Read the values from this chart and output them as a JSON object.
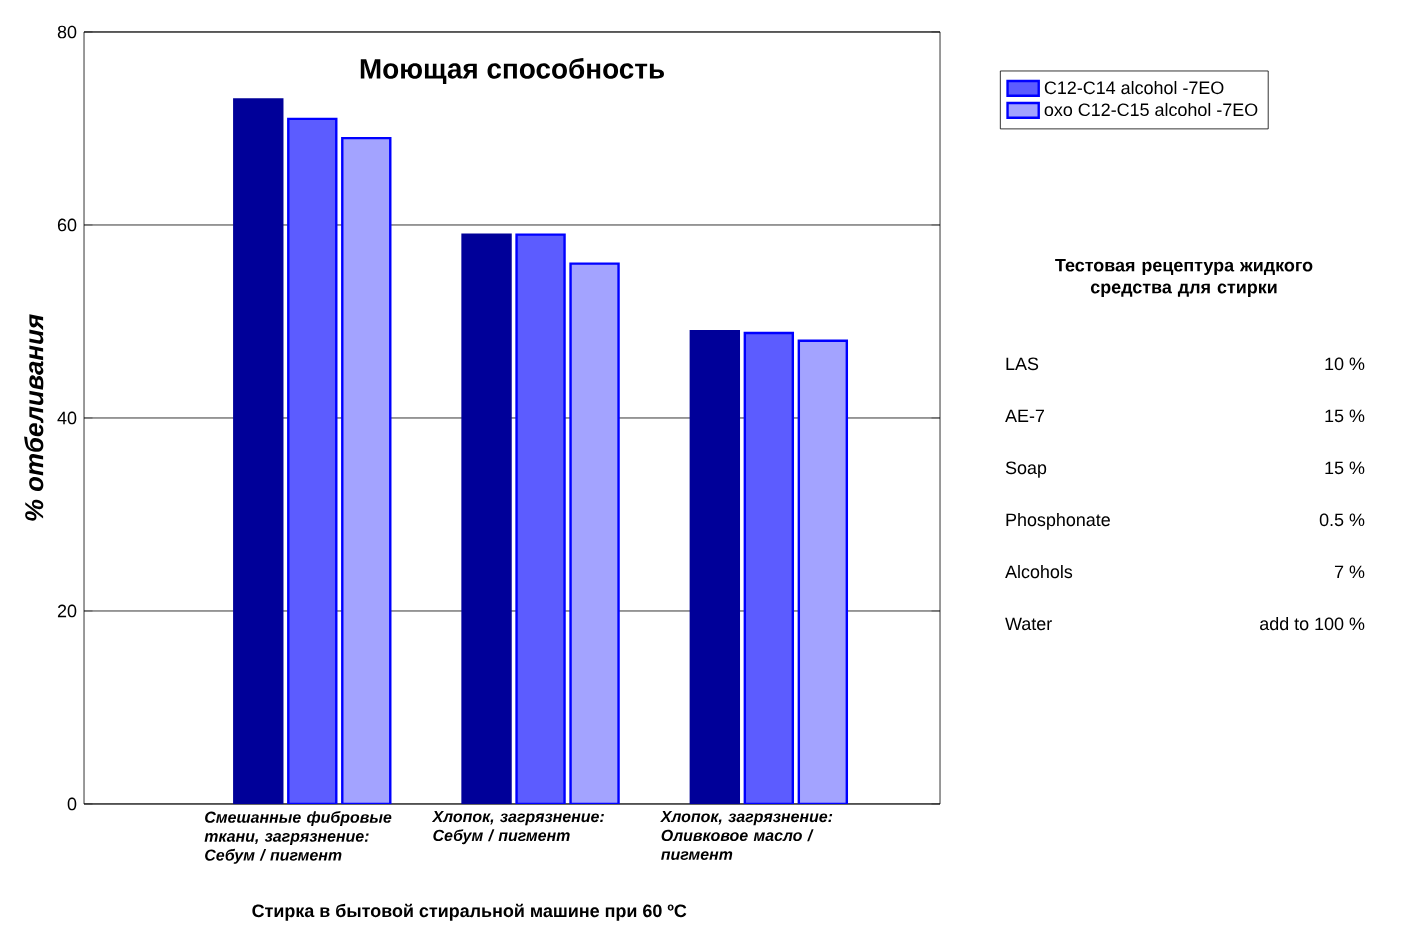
{
  "chart_data": {
    "type": "bar",
    "title": "Моющая способность",
    "xlabel": "Стирка в бытовой стиральной машине при 60 ºC",
    "ylabel": "% отбеливания",
    "categories": [
      "Смешанные фибровые ткани, загрязнение: Себум / пигмент",
      "Хлопок, загрязнение: Себум / пигмент",
      "Хлопок, загрязнение: Оливковое масло / пигмент"
    ],
    "series": [
      {
        "color": "#000099",
        "values": [
          73,
          59,
          49
        ]
      },
      {
        "name": "C12-C14 alcohol -7EO",
        "color": "#5c5cff",
        "values": [
          71,
          59,
          48.8
        ]
      },
      {
        "name": "oxo C12-C15 alcohol -7EO",
        "color": "#a3a3ff",
        "values": [
          69,
          56,
          48
        ]
      }
    ],
    "ylim": [
      0,
      80
    ],
    "yticks": [
      0,
      20,
      40,
      60,
      80
    ],
    "grid": "y",
    "legend": "top right",
    "annotations": [
      "Тестовая рецептура жидкого средства для стирки",
      "LAS",
      "10 %",
      "AE-7",
      "15 %",
      "Soap",
      "15 %",
      "Phosphonate",
      "0.5 %",
      "Alcohols",
      "7 %",
      "Water",
      "add to 100 %"
    ]
  }
}
